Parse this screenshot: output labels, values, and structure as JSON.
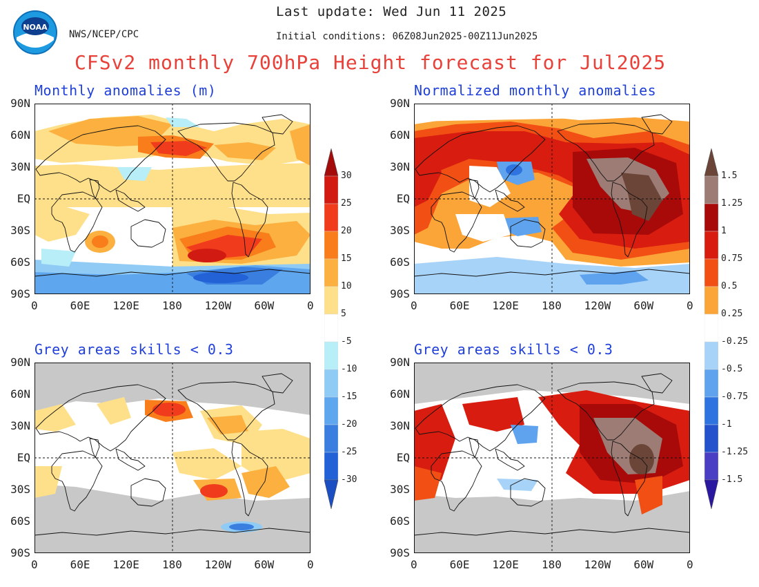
{
  "header": {
    "agency": "NWS/NCEP/CPC",
    "last_update": "Last update: Wed Jun 11 2025",
    "initial_conditions": "Initial conditions: 06Z08Jun2025-00Z11Jun2025",
    "title": "CFSv2 monthly 700hPa Height forecast for Jul2025",
    "logo_text": "NOAA"
  },
  "panels": [
    {
      "id": "top-left",
      "title": "Monthly anomalies (m)"
    },
    {
      "id": "top-right",
      "title": "Normalized monthly anomalies"
    },
    {
      "id": "bottom-left",
      "title": "Grey areas skills < 0.3"
    },
    {
      "id": "bottom-right",
      "title": "Grey areas skills < 0.3"
    }
  ],
  "axes": {
    "lat_labels": [
      "90N",
      "60N",
      "30N",
      "EQ",
      "30S",
      "60S",
      "90S"
    ],
    "lon_labels": [
      "0",
      "60E",
      "120E",
      "180",
      "120W",
      "60W",
      "0"
    ]
  },
  "colorbars": {
    "absolute": {
      "units": "m",
      "labels": [
        "30",
        "25",
        "20",
        "15",
        "10",
        "5",
        "-5",
        "-10",
        "-15",
        "-20",
        "-25",
        "-30"
      ],
      "colors": [
        "#a40c0c",
        "#d11a12",
        "#f03c1c",
        "#f97d1a",
        "#fbb040",
        "#ffe08a",
        "#ffffff",
        "#b8eef8",
        "#8fcbf5",
        "#5ea6ee",
        "#3a7fe0",
        "#2262d6",
        "#1a4ec2"
      ]
    },
    "normalized": {
      "labels": [
        "1.5",
        "1.25",
        "1",
        "0.75",
        "0.5",
        "0.25",
        "-0.25",
        "-0.5",
        "-0.75",
        "-1",
        "-1.25",
        "-1.5"
      ],
      "colors": [
        "#6b4538",
        "#9c7c75",
        "#a80a0a",
        "#d81d10",
        "#f24f14",
        "#fba438",
        "#ffffff",
        "#a8d3f8",
        "#5fa3ee",
        "#2e73e0",
        "#2452cc",
        "#4a3fc4",
        "#2b18a0"
      ]
    }
  },
  "colors": {
    "skill_mask_grey": "#c8c8c8",
    "title_red": "#e8413a",
    "panel_title_blue": "#1f3fd9"
  }
}
